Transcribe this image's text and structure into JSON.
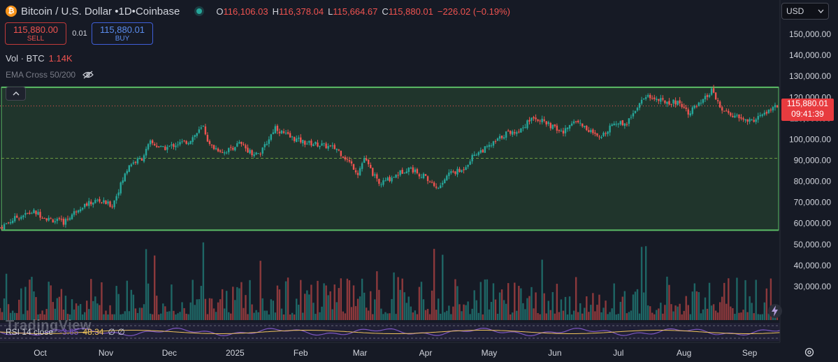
{
  "header": {
    "symbol": "Bitcoin / U.S. Dollar",
    "interval": "1D",
    "exchange": "Coinbase",
    "logo_glyph": "₿",
    "separator": "•",
    "open_label": "O",
    "open": "116,106.03",
    "high_label": "H",
    "high": "116,378.04",
    "low_label": "L",
    "low": "115,664.67",
    "close_label": "C",
    "close": "115,880.01",
    "change": "−226.02 (−0.19%)"
  },
  "trade": {
    "sell_price": "115,880.00",
    "sell_label": "SELL",
    "spread": "0.01",
    "buy_price": "115,880.01",
    "buy_label": "BUY"
  },
  "volume": {
    "label": "Vol · BTC",
    "value": "1.14K"
  },
  "indicator": {
    "ema_label": "EMA Cross 50/200",
    "eye_icon": "eye-off-icon"
  },
  "currency": {
    "label": "USD",
    "icon": "chevron-down-icon"
  },
  "last_price": {
    "price": "115,880.01",
    "countdown": "09:41:39"
  },
  "rsi": {
    "label": "RSI 14 close",
    "value1": "~3.65",
    "value2": "48.34",
    "value3": "∅ ∅"
  },
  "watermark": "TradingView",
  "colors": {
    "up": "#26a69a",
    "down": "#ef5350",
    "box": "#5bbd66",
    "rsi_line": "#7e57c2",
    "rsi_ma": "#f0c45c"
  },
  "chart_data": {
    "type": "candlestick",
    "interval": "1D",
    "ylim": [
      22000,
      155000
    ],
    "yticks": [
      30000,
      40000,
      50000,
      60000,
      70000,
      80000,
      90000,
      100000,
      110000,
      120000,
      130000,
      140000,
      150000
    ],
    "ytick_labels": [
      "30,000.00",
      "40,000.00",
      "50,000.00",
      "60,000.00",
      "70,000.00",
      "80,000.00",
      "90,000.00",
      "100,000.00",
      "110,000.00",
      "120,000.00",
      "130,000.00",
      "140,000.00",
      "150,000.00"
    ],
    "xticks": [
      {
        "label": "Oct",
        "date": "2024-10-01"
      },
      {
        "label": "Nov",
        "date": "2024-11-01"
      },
      {
        "label": "Dec",
        "date": "2024-12-01"
      },
      {
        "label": "2025",
        "date": "2025-01-01"
      },
      {
        "label": "Feb",
        "date": "2025-02-01"
      },
      {
        "label": "Mar",
        "date": "2025-03-01"
      },
      {
        "label": "Apr",
        "date": "2025-04-01"
      },
      {
        "label": "May",
        "date": "2025-05-01"
      },
      {
        "label": "Jun",
        "date": "2025-06-01"
      },
      {
        "label": "Jul",
        "date": "2025-07-01"
      },
      {
        "label": "Aug",
        "date": "2025-08-01"
      },
      {
        "label": "Sep",
        "date": "2025-09-01"
      }
    ],
    "date_range": [
      "2024-09-12",
      "2025-09-14"
    ],
    "close_series": [
      [
        "2024-09-12",
        58000
      ],
      [
        "2024-09-20",
        63000
      ],
      [
        "2024-09-28",
        65500
      ],
      [
        "2024-10-05",
        62000
      ],
      [
        "2024-10-12",
        60500
      ],
      [
        "2024-10-20",
        68000
      ],
      [
        "2024-10-28",
        71000
      ],
      [
        "2024-11-04",
        68500
      ],
      [
        "2024-11-07",
        76000
      ],
      [
        "2024-11-12",
        88000
      ],
      [
        "2024-11-18",
        91000
      ],
      [
        "2024-11-22",
        98500
      ],
      [
        "2024-11-28",
        95500
      ],
      [
        "2024-12-05",
        98000
      ],
      [
        "2024-12-10",
        99000
      ],
      [
        "2024-12-17",
        106000
      ],
      [
        "2024-12-20",
        97000
      ],
      [
        "2024-12-27",
        94000
      ],
      [
        "2025-01-03",
        98000
      ],
      [
        "2025-01-09",
        93500
      ],
      [
        "2025-01-13",
        93000
      ],
      [
        "2025-01-20",
        106000
      ],
      [
        "2025-01-22",
        104000
      ],
      [
        "2025-01-27",
        101000
      ],
      [
        "2025-02-03",
        98500
      ],
      [
        "2025-02-10",
        97500
      ],
      [
        "2025-02-18",
        95500
      ],
      [
        "2025-02-25",
        88000
      ],
      [
        "2025-02-28",
        84000
      ],
      [
        "2025-03-03",
        91000
      ],
      [
        "2025-03-10",
        78500
      ],
      [
        "2025-03-17",
        82500
      ],
      [
        "2025-03-24",
        86500
      ],
      [
        "2025-03-31",
        82500
      ],
      [
        "2025-04-07",
        76500
      ],
      [
        "2025-04-12",
        84000
      ],
      [
        "2025-04-18",
        85000
      ],
      [
        "2025-04-24",
        93000
      ],
      [
        "2025-05-01",
        96500
      ],
      [
        "2025-05-09",
        103000
      ],
      [
        "2025-05-15",
        104000
      ],
      [
        "2025-05-22",
        111000
      ],
      [
        "2025-05-28",
        107500
      ],
      [
        "2025-06-05",
        103000
      ],
      [
        "2025-06-10",
        109500
      ],
      [
        "2025-06-17",
        104500
      ],
      [
        "2025-06-22",
        100000
      ],
      [
        "2025-06-28",
        107500
      ],
      [
        "2025-07-05",
        108000
      ],
      [
        "2025-07-10",
        116000
      ],
      [
        "2025-07-14",
        121000
      ],
      [
        "2025-07-22",
        118000
      ],
      [
        "2025-07-30",
        117500
      ],
      [
        "2025-08-03",
        113000
      ],
      [
        "2025-08-09",
        117000
      ],
      [
        "2025-08-14",
        123000
      ],
      [
        "2025-08-19",
        113500
      ],
      [
        "2025-08-26",
        110500
      ],
      [
        "2025-09-01",
        108500
      ],
      [
        "2025-09-06",
        111000
      ],
      [
        "2025-09-14",
        115880
      ]
    ],
    "box_range": [
      56800,
      124800
    ],
    "dashed_level": 91000,
    "last_price": 115880.01,
    "volume_note": "volume histogram rendered in pane, colored by candle direction",
    "rsi_note": "RSI 14 with moving average in bottom pane"
  }
}
